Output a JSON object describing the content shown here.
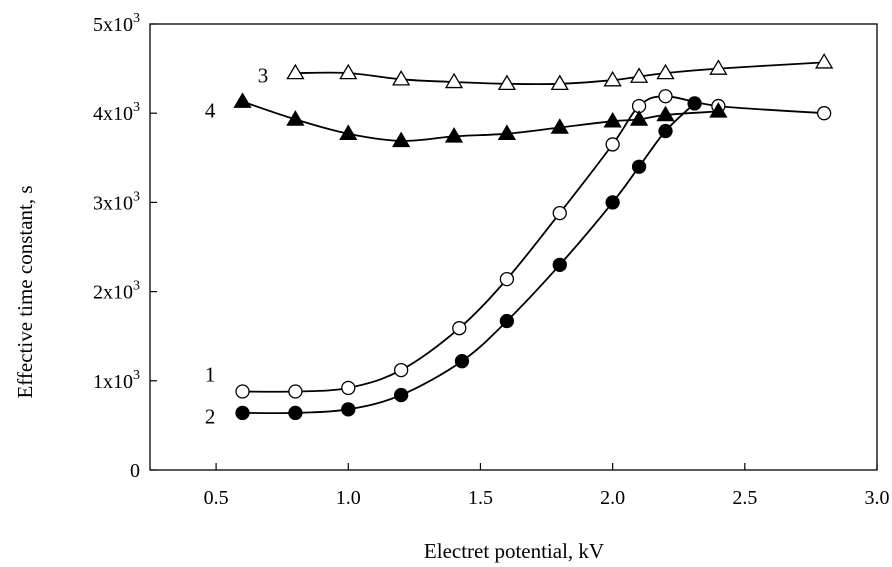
{
  "chart_data": {
    "type": "scatter",
    "title": "",
    "xlabel": "Electret potential, kV",
    "ylabel": "Effective time constant, s",
    "xlim": [
      0.25,
      3.0
    ],
    "ylim": [
      0,
      5000
    ],
    "x_ticks": [
      0.5,
      1.0,
      1.5,
      2.0,
      2.5,
      3.0
    ],
    "x_tick_labels": [
      "0.5",
      "1.0",
      "1.5",
      "2.0",
      "2.5",
      "3.0"
    ],
    "y_ticks": [
      0,
      1000,
      2000,
      3000,
      4000,
      5000
    ],
    "y_tick_labels": [
      {
        "mantissa": "0",
        "exp": ""
      },
      {
        "mantissa": "1x10",
        "exp": "3"
      },
      {
        "mantissa": "2x10",
        "exp": "3"
      },
      {
        "mantissa": "3x10",
        "exp": "3"
      },
      {
        "mantissa": "4x10",
        "exp": "3"
      },
      {
        "mantissa": "5x10",
        "exp": "3"
      }
    ],
    "grid": false,
    "legend": "none",
    "series": [
      {
        "label": "1",
        "marker": "open-circle",
        "label_at": [
          0.5,
          1070
        ],
        "x": [
          0.6,
          0.8,
          1.0,
          1.2,
          1.42,
          1.6,
          1.8,
          2.0,
          2.1,
          2.2,
          2.4,
          2.8
        ],
        "y": [
          880,
          880,
          920,
          1120,
          1590,
          2140,
          2880,
          3650,
          4080,
          4190,
          4080,
          4000
        ]
      },
      {
        "label": "2",
        "marker": "filled-circle",
        "label_at": [
          0.5,
          600
        ],
        "x": [
          0.6,
          0.8,
          1.0,
          1.2,
          1.43,
          1.6,
          1.8,
          2.0,
          2.1,
          2.2,
          2.31
        ],
        "y": [
          640,
          640,
          680,
          840,
          1220,
          1670,
          2300,
          3000,
          3400,
          3800,
          4110
        ]
      },
      {
        "label": "3",
        "marker": "open-triangle",
        "label_at": [
          0.7,
          4420
        ],
        "x": [
          0.8,
          1.0,
          1.2,
          1.4,
          1.6,
          1.8,
          2.0,
          2.1,
          2.2,
          2.4,
          2.8
        ],
        "y": [
          4450,
          4450,
          4380,
          4350,
          4330,
          4330,
          4370,
          4410,
          4450,
          4500,
          4570
        ]
      },
      {
        "label": "4",
        "marker": "filled-triangle",
        "label_at": [
          0.5,
          4030
        ],
        "x": [
          0.6,
          0.8,
          1.0,
          1.2,
          1.4,
          1.6,
          1.8,
          2.0,
          2.1,
          2.2,
          2.4
        ],
        "y": [
          4130,
          3930,
          3770,
          3690,
          3740,
          3770,
          3840,
          3910,
          3930,
          3980,
          4020
        ]
      }
    ]
  }
}
